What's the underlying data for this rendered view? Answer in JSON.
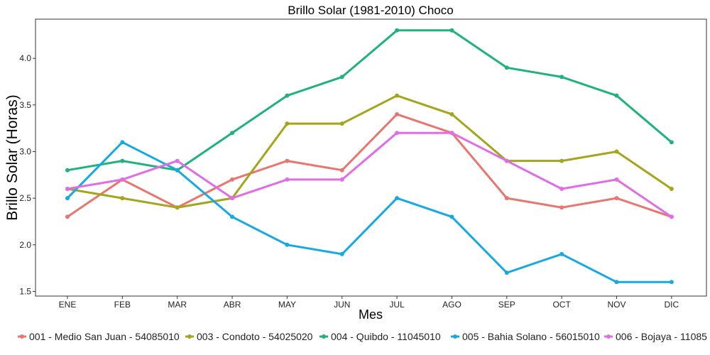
{
  "chart_data": {
    "type": "line",
    "title": "Brillo Solar (1981-2010)  Choco",
    "xlabel": "Mes",
    "ylabel": "Brillo Solar (Horas)",
    "categories": [
      "ENE",
      "FEB",
      "MAR",
      "ABR",
      "MAY",
      "JUN",
      "JUL",
      "AGO",
      "SEP",
      "OCT",
      "NOV",
      "DIC"
    ],
    "ylim": [
      1.45,
      4.42
    ],
    "yticks": [
      "1.5",
      "2.0",
      "2.5",
      "3.0",
      "3.5",
      "4.0"
    ],
    "grid": false,
    "legend_position": "bottom",
    "series": [
      {
        "name": "001 - Medio San Juan - 54085010",
        "color": "#E8766E",
        "values": [
          2.3,
          2.7,
          2.4,
          2.7,
          2.9,
          2.8,
          3.4,
          3.2,
          2.5,
          2.4,
          2.5,
          2.3
        ]
      },
      {
        "name": "003 - Condoto - 54025020",
        "color": "#A3A51A",
        "values": [
          2.6,
          2.5,
          2.4,
          2.5,
          3.3,
          3.3,
          3.6,
          3.4,
          2.9,
          2.9,
          3.0,
          2.6
        ]
      },
      {
        "name": "004 - Quibdo - 11045010",
        "color": "#1FB27C",
        "values": [
          2.8,
          2.9,
          2.8,
          3.2,
          3.6,
          3.8,
          4.3,
          4.3,
          3.9,
          3.8,
          3.6,
          3.1
        ]
      },
      {
        "name": "005 - Bahia Solano - 56015010",
        "color": "#17A9E2",
        "values": [
          2.5,
          3.1,
          2.8,
          2.3,
          2.0,
          1.9,
          2.5,
          2.3,
          1.7,
          1.9,
          1.6,
          1.6
        ]
      },
      {
        "name": "006 - Bojaya - 11085",
        "color": "#E06DE6",
        "values": [
          2.6,
          2.7,
          2.9,
          2.5,
          2.7,
          2.7,
          3.2,
          3.2,
          2.9,
          2.6,
          2.7,
          2.3
        ]
      }
    ]
  }
}
